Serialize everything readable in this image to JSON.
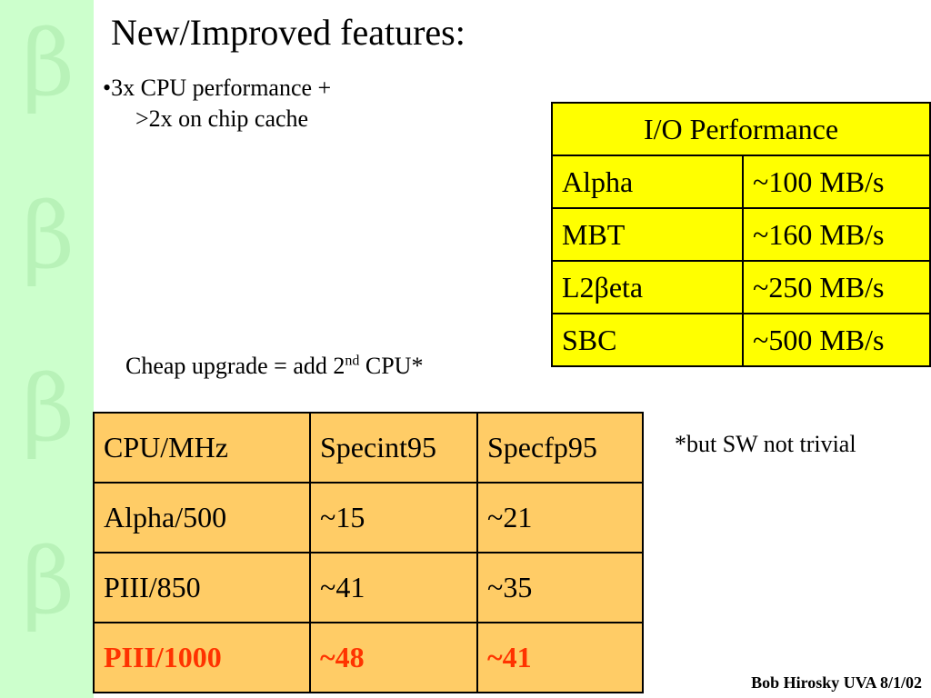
{
  "slide": {
    "title": "New/Improved features:",
    "bullet_line1": "•3x CPU performance +",
    "bullet_line2": ">2x on chip cache",
    "upgrade_note_pre": "Cheap upgrade = add 2",
    "upgrade_note_sup": "nd",
    "upgrade_note_post": " CPU*",
    "sw_note": "*but SW not trivial",
    "footer": "Bob Hirosky UVA 8/1/02",
    "sidebar_glyph": "β",
    "colors": {
      "sidebar": "#ccffcc",
      "io_table_bg": "#ffff00",
      "cpu_table_bg": "#ffcc66",
      "highlight_text": "#ff3300"
    }
  },
  "io_table": {
    "header": "I/O Performance",
    "rows": [
      {
        "name": "Alpha",
        "rate": "~100 MB/s"
      },
      {
        "name": "MBT",
        "rate": "~160 MB/s"
      },
      {
        "name": "L2βeta",
        "rate": "~250 MB/s"
      },
      {
        "name": "SBC",
        "rate": "~500 MB/s"
      }
    ]
  },
  "cpu_table": {
    "headers": [
      "CPU/MHz",
      "Specint95",
      "Specfp95"
    ],
    "rows": [
      [
        "Alpha/500",
        "~15",
        "~21"
      ],
      [
        "PIII/850",
        "~41",
        "~35"
      ],
      [
        "PIII/1000",
        "~48",
        "~41"
      ]
    ]
  }
}
